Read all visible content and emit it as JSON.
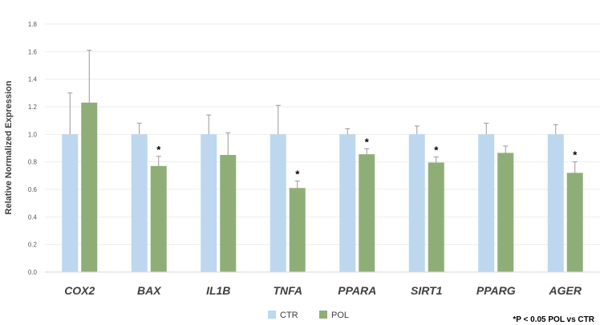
{
  "chart_data": {
    "type": "bar",
    "title": "",
    "xlabel": "",
    "ylabel": "Relative Normalized Expression",
    "ylim": [
      0,
      1.8
    ],
    "yticks": [
      "0.0",
      "0.2",
      "0.4",
      "0.6",
      "0.8",
      "1.0",
      "1.2",
      "1.4",
      "1.6",
      "1.8"
    ],
    "grid": true,
    "categories": [
      "COX2",
      "BAX",
      "IL1B",
      "TNFA",
      "PPARA",
      "SIRT1",
      "PPARG",
      "AGER"
    ],
    "series": [
      {
        "name": "CTR",
        "color": "#BDD7EE",
        "values": [
          1.0,
          1.0,
          1.0,
          1.0,
          1.0,
          1.0,
          1.0,
          1.0
        ],
        "errors": [
          0.3,
          0.08,
          0.14,
          0.21,
          0.04,
          0.06,
          0.08,
          0.07
        ]
      },
      {
        "name": "POL",
        "color": "#8FAE77",
        "values": [
          1.23,
          0.77,
          0.85,
          0.61,
          0.855,
          0.795,
          0.865,
          0.72
        ],
        "errors": [
          0.38,
          0.07,
          0.16,
          0.05,
          0.04,
          0.04,
          0.05,
          0.08
        ]
      }
    ],
    "significant": [
      false,
      true,
      false,
      true,
      true,
      true,
      false,
      true
    ],
    "significance_marker": "*",
    "legend_position": "bottom",
    "legend": [
      "CTR",
      "POL"
    ],
    "footnote": "*P < 0.05 POL vs CTR"
  }
}
